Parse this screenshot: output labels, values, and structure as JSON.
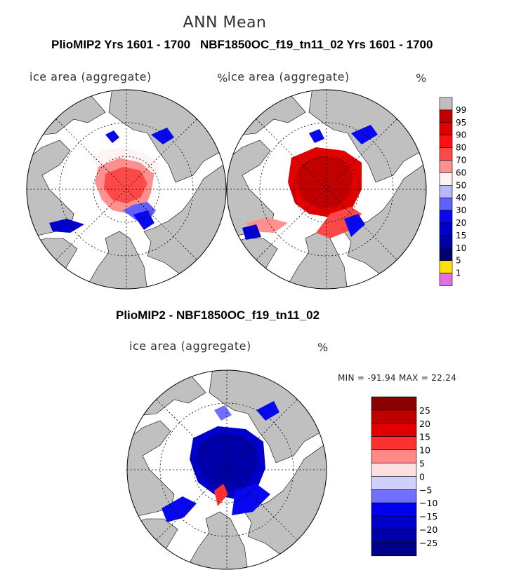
{
  "main_title": "ANN Mean",
  "panels": [
    {
      "title": "PlioMIP2  Yrs 1601 - 1700",
      "field": "ice area  (aggregate)",
      "units": "%"
    },
    {
      "title": "NBF1850OC_f19_tn11_02  Yrs 1601 - 1700",
      "field": "ice area  (aggregate)",
      "units": "%"
    },
    {
      "title": "PlioMIP2 - NBF1850OC_f19_tn11_02",
      "field": "ice area  (aggregate)",
      "units": "%"
    }
  ],
  "difference_stats": "MIN = -91.94 MAX =  22.24",
  "colorbar_top": {
    "labels": [
      "99",
      "95",
      "90",
      "80",
      "70",
      "60",
      "50",
      "40",
      "30",
      "20",
      "15",
      "10",
      "5",
      "1"
    ],
    "colors": [
      "#bebebe",
      "#c00000",
      "#e00000",
      "#ff1010",
      "#ff4848",
      "#ff9090",
      "#fff2f2",
      "#b8b8f8",
      "#6060ff",
      "#0808f0",
      "#0000cc",
      "#0000a8",
      "#00006e",
      "#ffe000",
      "#e070e0"
    ]
  },
  "colorbar_diff": {
    "labels": [
      "25",
      "20",
      "15",
      "10",
      "5",
      "0",
      "-5",
      "-10",
      "-15",
      "-20",
      "-25"
    ],
    "colors": [
      "#8b0000",
      "#c00000",
      "#e00000",
      "#ff3030",
      "#ff8888",
      "#ffe0e0",
      "#d0d0ff",
      "#7070ff",
      "#0000ee",
      "#0000cc",
      "#0000aa",
      "#000088"
    ]
  },
  "colors": {
    "land": "#c0c0c0",
    "ocean": "#ffffff",
    "grid": "#000000"
  }
}
